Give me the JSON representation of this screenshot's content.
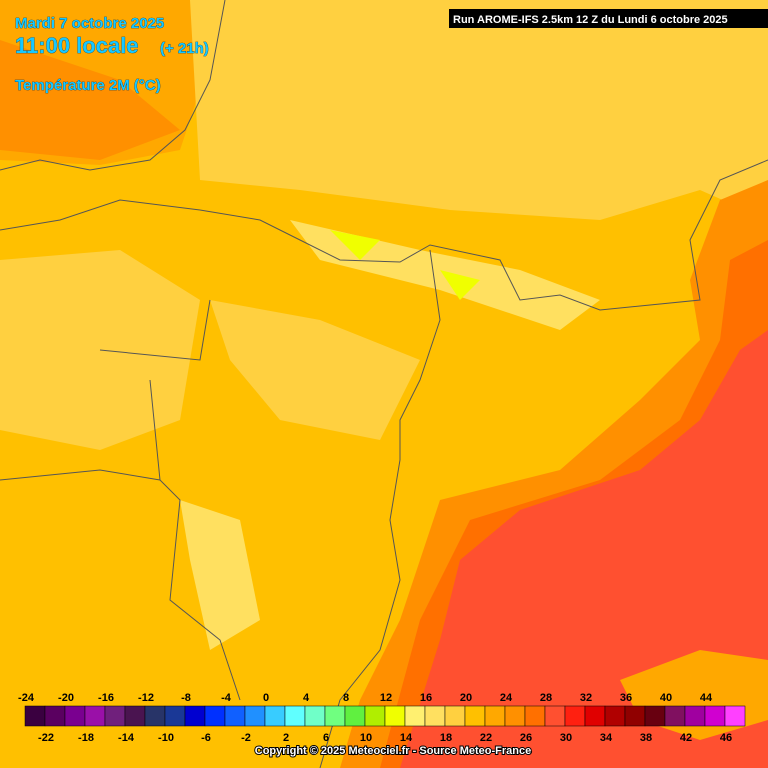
{
  "header": {
    "date": "Mardi 7 octobre 2025",
    "time": "11:00 locale",
    "lead": "(+ 21h)",
    "parameter": "Température 2M (°C)",
    "run": "Run AROME-IFS 2.5km 12 Z du Lundi 6 octobre 2025"
  },
  "scale": {
    "labels": [
      -24,
      -22,
      -20,
      -18,
      -16,
      -14,
      -12,
      -10,
      -8,
      -6,
      -4,
      -2,
      0,
      2,
      4,
      6,
      8,
      10,
      12,
      14,
      16,
      18,
      20,
      22,
      24,
      26,
      28,
      30,
      32,
      34,
      36,
      38,
      40,
      42,
      44,
      46
    ],
    "colors": [
      "#3a0040",
      "#5a0060",
      "#7a0090",
      "#9a10a8",
      "#70207c",
      "#4a1450",
      "#283468",
      "#1a3896",
      "#0000d0",
      "#0030ff",
      "#1060ff",
      "#2090ff",
      "#38ccff",
      "#60ffff",
      "#70ffc8",
      "#70ff80",
      "#60f040",
      "#b0ee00",
      "#f0ff00",
      "#fff070",
      "#ffe060",
      "#ffd040",
      "#ffc000",
      "#ffa800",
      "#ff9000",
      "#ff7000",
      "#ff5030",
      "#ff2010",
      "#e00000",
      "#b00000",
      "#900000",
      "#680010",
      "#801060",
      "#a000a0",
      "#d000d0",
      "#ff40ff"
    ]
  },
  "footer": {
    "copyright": "Copyright © 2025 Meteociel.fr - Source Meteo-France"
  }
}
